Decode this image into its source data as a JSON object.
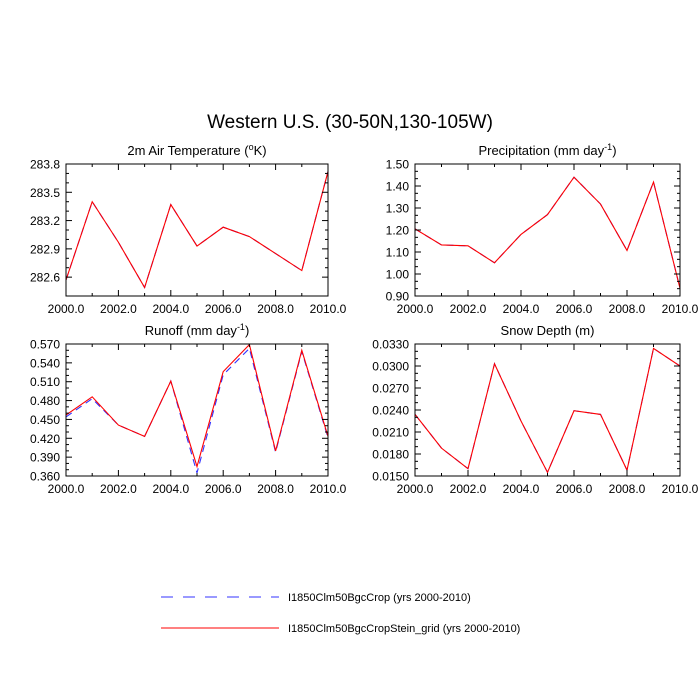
{
  "figure_title": "Western U.S. (30-50N,130-105W)",
  "legend": [
    {
      "label": "I1850Clm50BgcCrop (yrs 2000-2010)",
      "color": "#3333ff",
      "dash": true
    },
    {
      "label": "I1850Clm50BgcCropStein_grid (yrs 2000-2010)",
      "color": "#ff0000",
      "dash": false
    }
  ],
  "chart_data": [
    {
      "type": "line",
      "title_main": "2m Air Temperature (",
      "title_sup": "o",
      "title_after": "K)",
      "x": [
        2000,
        2001,
        2002,
        2003,
        2004,
        2005,
        2006,
        2007,
        2008,
        2009,
        2010
      ],
      "xlim": [
        2000,
        2010
      ],
      "ylim": [
        282.4,
        283.8
      ],
      "xticks": [
        "2000.0",
        "2002.0",
        "2004.0",
        "2006.0",
        "2008.0",
        "2010.0"
      ],
      "yticks": [
        "282.6",
        "282.9",
        "283.2",
        "283.5",
        "283.8"
      ],
      "ytick_values": [
        282.6,
        282.9,
        283.2,
        283.5,
        283.8
      ],
      "series": [
        {
          "name": "I1850Clm50BgcCrop (yrs 2000-2010)",
          "values": [
            282.57,
            283.4,
            282.97,
            282.49,
            283.37,
            282.93,
            283.13,
            283.03,
            282.85,
            282.67,
            283.72
          ]
        },
        {
          "name": "I1850Clm50BgcCropStein_grid (yrs 2000-2010)",
          "values": [
            282.57,
            283.4,
            282.97,
            282.49,
            283.37,
            282.93,
            283.13,
            283.03,
            282.85,
            282.67,
            283.72
          ]
        }
      ]
    },
    {
      "type": "line",
      "title_main": "Precipitation (mm day",
      "title_sup": "-1",
      "title_after": ")",
      "x": [
        2000,
        2001,
        2002,
        2003,
        2004,
        2005,
        2006,
        2007,
        2008,
        2009,
        2010
      ],
      "xlim": [
        2000,
        2010
      ],
      "ylim": [
        0.9,
        1.5
      ],
      "xticks": [
        "2000.0",
        "2002.0",
        "2004.0",
        "2006.0",
        "2008.0",
        "2010.0"
      ],
      "yticks": [
        "0.90",
        "1.00",
        "1.10",
        "1.20",
        "1.30",
        "1.40",
        "1.50"
      ],
      "ytick_values": [
        0.9,
        1.0,
        1.1,
        1.2,
        1.3,
        1.4,
        1.5
      ],
      "series": [
        {
          "name": "I1850Clm50BgcCrop (yrs 2000-2010)",
          "values": [
            1.205,
            1.132,
            1.128,
            1.051,
            1.18,
            1.27,
            1.44,
            1.318,
            1.107,
            1.418,
            0.935
          ]
        },
        {
          "name": "I1850Clm50BgcCropStein_grid (yrs 2000-2010)",
          "values": [
            1.205,
            1.132,
            1.128,
            1.051,
            1.18,
            1.27,
            1.44,
            1.318,
            1.107,
            1.418,
            0.935
          ]
        }
      ]
    },
    {
      "type": "line",
      "title_main": "Runoff (mm day",
      "title_sup": "-1",
      "title_after": ")",
      "x": [
        2000,
        2001,
        2002,
        2003,
        2004,
        2005,
        2006,
        2007,
        2008,
        2009,
        2010
      ],
      "xlim": [
        2000,
        2010
      ],
      "ylim": [
        0.36,
        0.57
      ],
      "xticks": [
        "2000.0",
        "2002.0",
        "2004.0",
        "2006.0",
        "2008.0",
        "2010.0"
      ],
      "yticks": [
        "0.360",
        "0.390",
        "0.420",
        "0.450",
        "0.480",
        "0.510",
        "0.540",
        "0.570"
      ],
      "ytick_values": [
        0.36,
        0.39,
        0.42,
        0.45,
        0.48,
        0.51,
        0.54,
        0.57
      ],
      "series": [
        {
          "name": "I1850Clm50BgcCrop (yrs 2000-2010)",
          "values": [
            0.454,
            0.483,
            0.441,
            0.423,
            0.511,
            0.365,
            0.521,
            0.563,
            0.398,
            0.558,
            0.421
          ]
        },
        {
          "name": "I1850Clm50BgcCropStein_grid (yrs 2000-2010)",
          "values": [
            0.457,
            0.486,
            0.441,
            0.423,
            0.511,
            0.375,
            0.526,
            0.569,
            0.4,
            0.56,
            0.423
          ]
        }
      ]
    },
    {
      "type": "line",
      "title_main": "Snow Depth (m)",
      "title_sup": "",
      "title_after": "",
      "x": [
        2000,
        2001,
        2002,
        2003,
        2004,
        2005,
        2006,
        2007,
        2008,
        2009,
        2010
      ],
      "xlim": [
        2000,
        2010
      ],
      "ylim": [
        0.015,
        0.033
      ],
      "xticks": [
        "2000.0",
        "2002.0",
        "2004.0",
        "2006.0",
        "2008.0",
        "2010.0"
      ],
      "yticks": [
        "0.0150",
        "0.0180",
        "0.0210",
        "0.0240",
        "0.0270",
        "0.0300",
        "0.0330"
      ],
      "ytick_values": [
        0.015,
        0.018,
        0.021,
        0.024,
        0.027,
        0.03,
        0.033
      ],
      "series": [
        {
          "name": "I1850Clm50BgcCrop (yrs 2000-2010)",
          "values": [
            0.0234,
            0.0188,
            0.016,
            0.0303,
            0.0225,
            0.0155,
            0.0239,
            0.0234,
            0.0158,
            0.0324,
            0.03
          ]
        },
        {
          "name": "I1850Clm50BgcCropStein_grid (yrs 2000-2010)",
          "values": [
            0.0234,
            0.0188,
            0.016,
            0.0303,
            0.0225,
            0.0155,
            0.0239,
            0.0234,
            0.0158,
            0.0324,
            0.03
          ]
        }
      ]
    }
  ]
}
